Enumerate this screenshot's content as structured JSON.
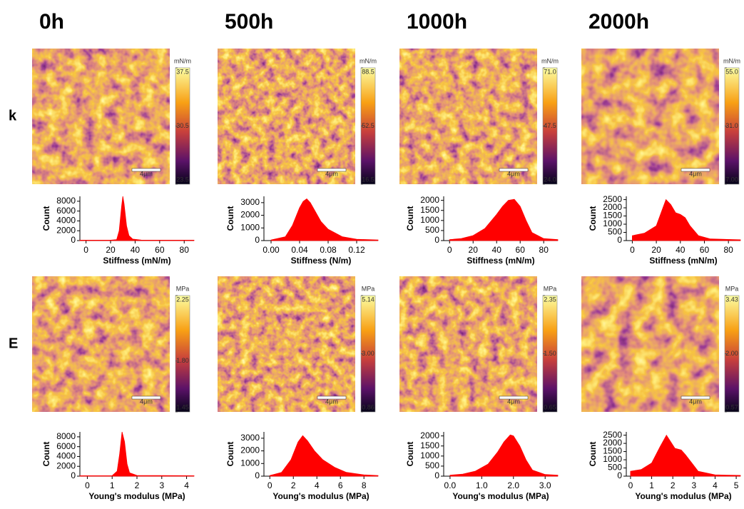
{
  "columns": [
    "0h",
    "500h",
    "1000h",
    "2000h"
  ],
  "rows": [
    "k",
    "E"
  ],
  "maps": [
    {
      "unit": "mN/m",
      "scalebar": "4μm",
      "ticks": [
        37.5,
        30.5,
        23.5
      ]
    },
    {
      "unit": "mN/m",
      "scalebar": "4μm",
      "ticks": [
        88.5,
        52.5,
        16.5
      ]
    },
    {
      "unit": "mN/m",
      "scalebar": "4μm",
      "ticks": [
        {
          "value": 71,
          "label": "71.0"
        },
        47.5,
        {
          "value": 24,
          "label": "24.0"
        }
      ]
    },
    {
      "unit": "mN/m",
      "scalebar": "4μm",
      "ticks": [
        {
          "value": 55,
          "label": "55.0"
        },
        {
          "value": 31,
          "label": "31.0"
        },
        {
          "value": 7,
          "label": "7.00"
        }
      ]
    },
    {
      "unit": "MPa",
      "scalebar": "4μm",
      "ticks": [
        2.25,
        {
          "value": 1.8,
          "label": "1.80"
        },
        1.45
      ]
    },
    {
      "unit": "MPa",
      "scalebar": "4μm",
      "ticks": [
        5.14,
        {
          "value": 3,
          "label": "3.00"
        },
        0.86
      ]
    },
    {
      "unit": "MPa",
      "scalebar": "4μm",
      "ticks": [
        2.35,
        {
          "value": 1.5,
          "label": "1.50"
        },
        0.65
      ]
    },
    {
      "unit": "MPa",
      "scalebar": "4μm",
      "ticks": [
        3.43,
        {
          "value": 2,
          "label": "2.00"
        },
        0.57
      ]
    }
  ],
  "chart_data": [
    {
      "type": "area",
      "xlabel": "Stiffness (mN/m)",
      "ylabel": "Count",
      "color": "#ff0000",
      "xlim": [
        -5,
        88
      ],
      "ylim": [
        0,
        9000
      ],
      "xticks": [
        0,
        20,
        40,
        60,
        80
      ],
      "yticks": [
        0,
        2000,
        4000,
        6000,
        8000
      ],
      "x": [
        -5,
        20,
        25,
        27,
        29,
        30,
        31,
        33,
        35,
        38,
        45,
        88
      ],
      "values": [
        80,
        80,
        200,
        2000,
        7000,
        9000,
        7500,
        3000,
        1000,
        300,
        100,
        80
      ]
    },
    {
      "type": "area",
      "xlabel": "Stiffness (N/m)",
      "ylabel": "Count",
      "color": "#ff0000",
      "xlim": [
        -0.01,
        0.15
      ],
      "ylim": [
        0,
        3500
      ],
      "xticks": [
        {
          "value": 0,
          "label": "0.00"
        },
        0.04,
        0.08,
        0.12
      ],
      "yticks": [
        0,
        1000,
        2000,
        3000
      ],
      "x": [
        0,
        0.02,
        0.03,
        0.04,
        0.045,
        0.05,
        0.055,
        0.06,
        0.07,
        0.08,
        0.1,
        0.12,
        0.15
      ],
      "values": [
        50,
        300,
        1200,
        2600,
        3100,
        3300,
        3000,
        2500,
        1500,
        900,
        300,
        100,
        50
      ]
    },
    {
      "type": "area",
      "xlabel": "Stiffness (mN/m)",
      "ylabel": "Count",
      "color": "#ff0000",
      "xlim": [
        -5,
        92
      ],
      "ylim": [
        0,
        2200
      ],
      "xticks": [
        0,
        20,
        40,
        60,
        80
      ],
      "yticks": [
        0,
        500,
        1000,
        1500,
        2000
      ],
      "x": [
        0,
        10,
        20,
        30,
        40,
        45,
        50,
        55,
        60,
        65,
        70,
        80,
        92
      ],
      "values": [
        50,
        100,
        250,
        600,
        1300,
        1700,
        2000,
        2050,
        1700,
        1000,
        400,
        100,
        50
      ]
    },
    {
      "type": "area",
      "xlabel": "Stiffness (mN/m)",
      "ylabel": "Count",
      "color": "#ff0000",
      "xlim": [
        -5,
        90
      ],
      "ylim": [
        0,
        2700
      ],
      "xticks": [
        0,
        20,
        40,
        60,
        80
      ],
      "yticks": [
        0,
        500,
        1000,
        1500,
        2000,
        2500
      ],
      "x": [
        0,
        10,
        20,
        25,
        28,
        32,
        36,
        40,
        44,
        48,
        55,
        65,
        90
      ],
      "values": [
        300,
        450,
        900,
        1900,
        2500,
        2200,
        1700,
        1600,
        1400,
        900,
        300,
        100,
        50
      ]
    },
    {
      "type": "area",
      "xlabel": "Young's modulus (MPa)",
      "ylabel": "Count",
      "color": "#ff0000",
      "xlim": [
        -0.3,
        4.3
      ],
      "ylim": [
        0,
        9000
      ],
      "xticks": [
        0,
        1,
        2,
        3,
        4
      ],
      "yticks": [
        0,
        2000,
        4000,
        6000,
        8000
      ],
      "x": [
        -0.3,
        1.0,
        1.2,
        1.3,
        1.4,
        1.5,
        1.6,
        1.7,
        2.0,
        4.3
      ],
      "values": [
        80,
        100,
        1000,
        4500,
        9000,
        7000,
        2500,
        700,
        150,
        80
      ]
    },
    {
      "type": "area",
      "xlabel": "Young's modulus (MPa)",
      "ylabel": "Count",
      "color": "#ff0000",
      "xlim": [
        -0.5,
        9.2
      ],
      "ylim": [
        0,
        3500
      ],
      "xticks": [
        0,
        2,
        4,
        6,
        8
      ],
      "yticks": [
        0,
        1000,
        2000,
        3000
      ],
      "x": [
        0,
        1,
        1.8,
        2.4,
        2.8,
        3.2,
        3.8,
        4.5,
        5.5,
        6.5,
        8,
        9.2
      ],
      "values": [
        50,
        300,
        1300,
        2700,
        3200,
        2800,
        2000,
        1300,
        700,
        300,
        100,
        50
      ]
    },
    {
      "type": "area",
      "xlabel": "Young's modulus (MPa)",
      "ylabel": "Count",
      "color": "#ff0000",
      "xlim": [
        -0.2,
        3.4
      ],
      "ylim": [
        0,
        2200
      ],
      "xticks": [
        {
          "value": 0,
          "label": "0.0"
        },
        {
          "value": 1,
          "label": "1.0"
        },
        {
          "value": 2,
          "label": "2.0"
        },
        {
          "value": 3,
          "label": "3.0"
        }
      ],
      "yticks": [
        0,
        500,
        1000,
        1500,
        2000
      ],
      "x": [
        0,
        0.4,
        0.8,
        1.2,
        1.5,
        1.7,
        1.9,
        2.0,
        2.2,
        2.4,
        2.6,
        3.0,
        3.4
      ],
      "values": [
        50,
        100,
        250,
        600,
        1200,
        1700,
        2050,
        2000,
        1500,
        800,
        300,
        80,
        50
      ]
    },
    {
      "type": "area",
      "xlabel": "Young's modulus (MPa)",
      "ylabel": "Count",
      "color": "#ff0000",
      "xlim": [
        -0.2,
        5.2
      ],
      "ylim": [
        0,
        2700
      ],
      "xticks": [
        0,
        1,
        2,
        3,
        4,
        5
      ],
      "yticks": [
        0,
        500,
        1000,
        1500,
        2000,
        2500
      ],
      "x": [
        0,
        0.5,
        1.0,
        1.4,
        1.7,
        1.9,
        2.1,
        2.4,
        2.6,
        2.9,
        3.2,
        4,
        5.2
      ],
      "values": [
        300,
        400,
        800,
        1800,
        2500,
        2100,
        1700,
        1600,
        1300,
        800,
        300,
        80,
        50
      ]
    }
  ]
}
